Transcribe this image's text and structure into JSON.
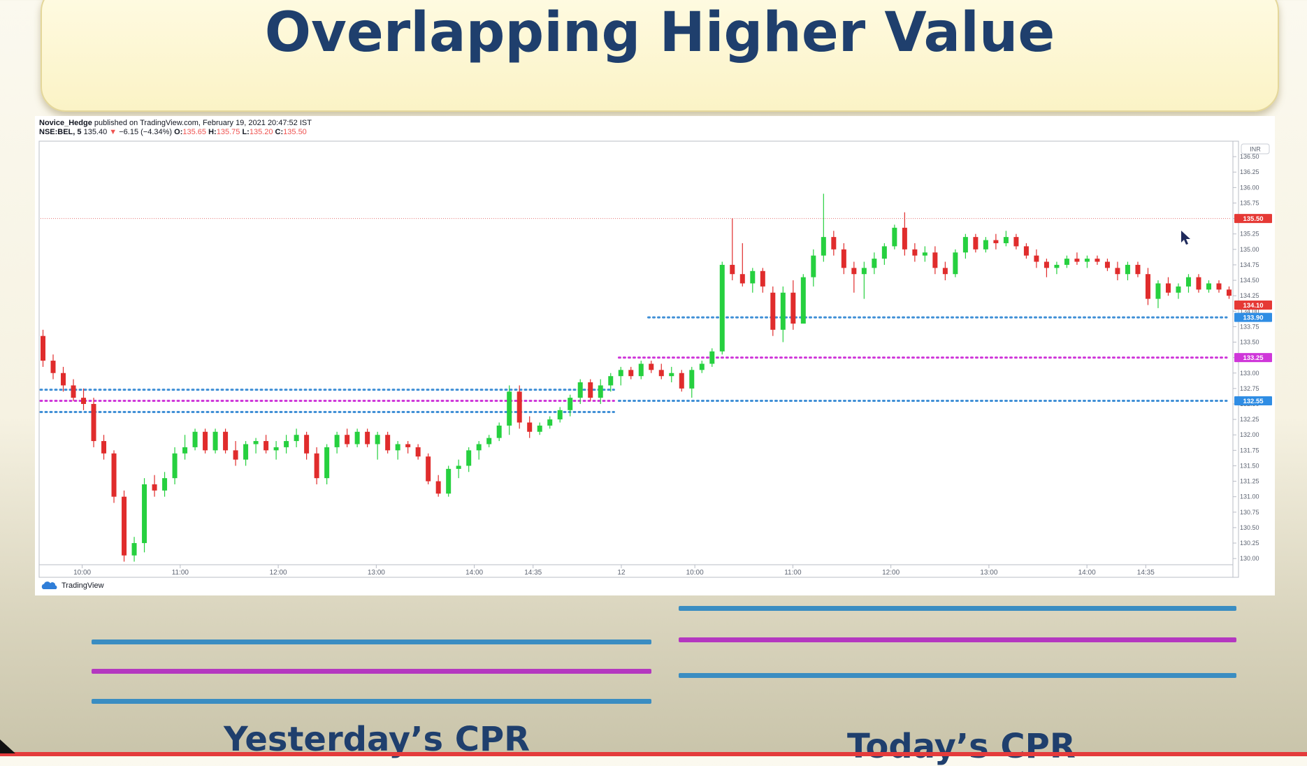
{
  "slide": {
    "title": "Overlapping Higher Value",
    "yesterday_label": "Yesterday’s CPR",
    "today_label": "Today’s CPR"
  },
  "header": {
    "author": "Novice_Hedge",
    "published": "published on TradingView.com, February 19, 2021 20:47:52 IST",
    "symbol": "NSE:BEL, 5",
    "last": "135.40",
    "change": "−6.15 (−4.34%)",
    "o_label": "O:",
    "o_value": "135.65",
    "h_label": "H:",
    "h_value": "135.75",
    "l_label": "L:",
    "l_value": "135.20",
    "c_label": "C:",
    "c_value": "135.50",
    "currency": "INR",
    "brand": "TradingView"
  },
  "colors": {
    "up": "#26d03f",
    "down": "#e02c2c",
    "pivot": "#cf37d9",
    "bc_tc": "#3f8fd6",
    "title": "#1f3f6d",
    "cpr_pivot": "#b437c0",
    "cpr_band": "#3a8dc2"
  },
  "chart_data": {
    "type": "candlestick",
    "y_range": [
      129.9,
      136.75
    ],
    "y_ticks": [
      "136.50",
      "136.25",
      "136.00",
      "135.75",
      "135.50",
      "135.25",
      "135.00",
      "134.75",
      "134.50",
      "134.25",
      "134.00",
      "133.75",
      "133.50",
      "133.25",
      "133.00",
      "132.75",
      "132.50",
      "132.25",
      "132.00",
      "131.75",
      "131.50",
      "131.25",
      "131.00",
      "130.75",
      "130.50",
      "130.25",
      "130.00"
    ],
    "x_ticks": [
      {
        "label": "10:00",
        "i": 8
      },
      {
        "label": "11:00",
        "i": 28
      },
      {
        "label": "12:00",
        "i": 48
      },
      {
        "label": "13:00",
        "i": 68
      },
      {
        "label": "14:00",
        "i": 88
      },
      {
        "label": "14:35",
        "i": 100
      },
      {
        "label": "12",
        "i": 118
      },
      {
        "label": "10:00",
        "i": 133
      },
      {
        "label": "11:00",
        "i": 153
      },
      {
        "label": "12:00",
        "i": 173
      },
      {
        "label": "13:00",
        "i": 193
      },
      {
        "label": "14:00",
        "i": 213
      },
      {
        "label": "14:35",
        "i": 225
      }
    ],
    "price_labels": [
      {
        "value": "135.50",
        "color": "#e53935"
      },
      {
        "value": "134.10",
        "color": "#e53935"
      },
      {
        "value": "133.90",
        "color": "#2f8de4"
      },
      {
        "value": "133.25",
        "color": "#cf37d9"
      },
      {
        "value": "132.55",
        "color": "#2f8de4"
      }
    ],
    "last_price_line": 135.5,
    "cpr": [
      {
        "name": "Yesterday TC",
        "value": 132.73,
        "from": 0,
        "to": 117,
        "color": "#3f8fd6"
      },
      {
        "name": "Yesterday Pivot",
        "value": 132.55,
        "from": 0,
        "to": 117,
        "color": "#cf37d9"
      },
      {
        "name": "Yesterday BC",
        "value": 132.37,
        "from": 0,
        "to": 117,
        "color": "#3f8fd6"
      },
      {
        "name": "Today TC",
        "value": 133.9,
        "from": 124,
        "to": 242,
        "color": "#3f8fd6"
      },
      {
        "name": "Today Pivot",
        "value": 133.25,
        "from": 118,
        "to": 242,
        "color": "#cf37d9"
      },
      {
        "name": "Today BC",
        "value": 132.55,
        "from": 118,
        "to": 242,
        "color": "#3f8fd6"
      }
    ],
    "ohlc": [
      [
        133.6,
        133.7,
        133.1,
        133.2
      ],
      [
        133.2,
        133.3,
        132.9,
        133.0
      ],
      [
        133.0,
        133.1,
        132.7,
        132.8
      ],
      [
        132.8,
        132.9,
        132.55,
        132.6
      ],
      [
        132.6,
        132.75,
        132.4,
        132.5
      ],
      [
        132.5,
        132.6,
        131.8,
        131.9
      ],
      [
        131.9,
        132.0,
        131.6,
        131.7
      ],
      [
        131.7,
        131.75,
        130.9,
        131.0
      ],
      [
        131.0,
        131.1,
        129.95,
        130.05
      ],
      [
        130.05,
        130.35,
        129.95,
        130.25
      ],
      [
        130.25,
        131.3,
        130.1,
        131.2
      ],
      [
        131.2,
        131.35,
        131.0,
        131.1
      ],
      [
        131.1,
        131.4,
        131.0,
        131.3
      ],
      [
        131.3,
        131.8,
        131.2,
        131.7
      ],
      [
        131.7,
        132.0,
        131.6,
        131.8
      ],
      [
        131.8,
        132.1,
        131.75,
        132.05
      ],
      [
        132.05,
        132.1,
        131.7,
        131.75
      ],
      [
        131.75,
        132.1,
        131.7,
        132.05
      ],
      [
        132.05,
        132.1,
        131.7,
        131.75
      ],
      [
        131.75,
        131.9,
        131.5,
        131.6
      ],
      [
        131.6,
        131.9,
        131.5,
        131.85
      ],
      [
        131.85,
        131.95,
        131.7,
        131.9
      ],
      [
        131.9,
        132.0,
        131.7,
        131.75
      ],
      [
        131.75,
        131.9,
        131.6,
        131.8
      ],
      [
        131.8,
        132.0,
        131.7,
        131.9
      ],
      [
        131.9,
        132.1,
        131.8,
        132.0
      ],
      [
        132.0,
        132.05,
        131.6,
        131.7
      ],
      [
        131.7,
        131.8,
        131.2,
        131.3
      ],
      [
        131.3,
        131.85,
        131.2,
        131.8
      ],
      [
        131.8,
        132.05,
        131.7,
        132.0
      ],
      [
        132.0,
        132.1,
        131.8,
        131.85
      ],
      [
        131.85,
        132.1,
        131.8,
        132.05
      ],
      [
        132.05,
        132.1,
        131.8,
        131.85
      ],
      [
        131.85,
        132.05,
        131.6,
        132.0
      ],
      [
        132.0,
        132.05,
        131.7,
        131.75
      ],
      [
        131.75,
        131.9,
        131.6,
        131.85
      ],
      [
        131.85,
        131.9,
        131.7,
        131.8
      ],
      [
        131.8,
        131.85,
        131.6,
        131.65
      ],
      [
        131.65,
        131.7,
        131.2,
        131.25
      ],
      [
        131.25,
        131.35,
        131.0,
        131.05
      ],
      [
        131.05,
        131.5,
        131.0,
        131.45
      ],
      [
        131.45,
        131.6,
        131.3,
        131.5
      ],
      [
        131.5,
        131.8,
        131.4,
        131.75
      ],
      [
        131.75,
        131.9,
        131.6,
        131.85
      ],
      [
        131.85,
        132.0,
        131.8,
        131.95
      ],
      [
        131.95,
        132.2,
        131.9,
        132.15
      ],
      [
        132.15,
        132.8,
        132.0,
        132.7
      ],
      [
        132.7,
        132.8,
        132.1,
        132.2
      ],
      [
        132.2,
        132.3,
        131.95,
        132.05
      ],
      [
        132.05,
        132.2,
        132.0,
        132.15
      ],
      [
        132.15,
        132.3,
        132.1,
        132.25
      ],
      [
        132.25,
        132.45,
        132.2,
        132.4
      ],
      [
        132.4,
        132.65,
        132.3,
        132.6
      ],
      [
        132.6,
        132.9,
        132.5,
        132.85
      ],
      [
        132.85,
        132.9,
        132.55,
        132.6
      ],
      [
        132.6,
        132.9,
        132.5,
        132.8
      ],
      [
        132.8,
        133.0,
        132.7,
        132.95
      ],
      [
        132.95,
        133.1,
        132.8,
        133.05
      ],
      [
        133.05,
        133.1,
        132.9,
        132.95
      ],
      [
        132.95,
        133.2,
        132.9,
        133.15
      ],
      [
        133.15,
        133.2,
        133.0,
        133.05
      ],
      [
        133.05,
        133.15,
        132.9,
        132.95
      ],
      [
        132.95,
        133.1,
        132.85,
        133.0
      ],
      [
        133.0,
        133.05,
        132.7,
        132.75
      ],
      [
        132.75,
        133.1,
        132.6,
        133.05
      ],
      [
        133.05,
        133.2,
        133.0,
        133.15
      ],
      [
        133.15,
        133.4,
        133.1,
        133.35
      ],
      [
        133.35,
        134.8,
        133.3,
        134.75
      ],
      [
        134.75,
        135.5,
        134.5,
        134.6
      ],
      [
        134.6,
        135.1,
        134.4,
        134.45
      ],
      [
        134.45,
        134.7,
        134.3,
        134.65
      ],
      [
        134.65,
        134.7,
        134.3,
        134.4
      ],
      [
        134.3,
        134.4,
        133.6,
        133.7
      ],
      [
        133.7,
        134.4,
        133.5,
        134.3
      ],
      [
        134.3,
        134.5,
        133.7,
        133.8
      ],
      [
        133.8,
        134.6,
        133.8,
        134.55
      ],
      [
        134.55,
        135.0,
        134.4,
        134.9
      ],
      [
        134.9,
        135.9,
        134.8,
        135.2
      ],
      [
        135.2,
        135.3,
        134.9,
        135.0
      ],
      [
        135.0,
        135.1,
        134.6,
        134.7
      ],
      [
        134.7,
        134.8,
        134.3,
        134.6
      ],
      [
        134.6,
        134.8,
        134.2,
        134.7
      ],
      [
        134.7,
        134.95,
        134.6,
        134.85
      ],
      [
        134.85,
        135.1,
        134.75,
        135.05
      ],
      [
        135.05,
        135.4,
        135.0,
        135.35
      ],
      [
        135.35,
        135.6,
        134.9,
        135.0
      ],
      [
        135.0,
        135.1,
        134.8,
        134.9
      ],
      [
        134.9,
        135.05,
        134.8,
        134.95
      ],
      [
        134.95,
        135.05,
        134.6,
        134.7
      ],
      [
        134.7,
        134.8,
        134.5,
        134.6
      ],
      [
        134.6,
        135.0,
        134.55,
        134.95
      ],
      [
        134.95,
        135.25,
        134.85,
        135.2
      ],
      [
        135.2,
        135.25,
        134.95,
        135.0
      ],
      [
        135.0,
        135.2,
        134.95,
        135.15
      ],
      [
        135.15,
        135.25,
        135.0,
        135.1
      ],
      [
        135.1,
        135.3,
        135.05,
        135.2
      ],
      [
        135.2,
        135.25,
        135.0,
        135.05
      ],
      [
        135.05,
        135.1,
        134.85,
        134.9
      ],
      [
        134.9,
        135.0,
        134.7,
        134.8
      ],
      [
        134.8,
        134.85,
        134.55,
        134.7
      ],
      [
        134.7,
        134.8,
        134.6,
        134.75
      ],
      [
        134.75,
        134.9,
        134.7,
        134.85
      ],
      [
        134.85,
        134.95,
        134.75,
        134.8
      ],
      [
        134.8,
        134.9,
        134.7,
        134.85
      ],
      [
        134.85,
        134.9,
        134.75,
        134.8
      ],
      [
        134.8,
        134.85,
        134.65,
        134.7
      ],
      [
        134.7,
        134.8,
        134.5,
        134.6
      ],
      [
        134.6,
        134.8,
        134.5,
        134.75
      ],
      [
        134.75,
        134.8,
        134.55,
        134.6
      ],
      [
        134.6,
        134.7,
        134.1,
        134.2
      ],
      [
        134.2,
        134.5,
        134.05,
        134.45
      ],
      [
        134.45,
        134.55,
        134.25,
        134.3
      ],
      [
        134.3,
        134.45,
        134.2,
        134.4
      ],
      [
        134.4,
        134.6,
        134.3,
        134.55
      ],
      [
        134.55,
        134.6,
        134.3,
        134.35
      ],
      [
        134.35,
        134.5,
        134.3,
        134.45
      ],
      [
        134.45,
        134.5,
        134.3,
        134.35
      ],
      [
        134.35,
        134.4,
        134.2,
        134.25
      ]
    ]
  }
}
